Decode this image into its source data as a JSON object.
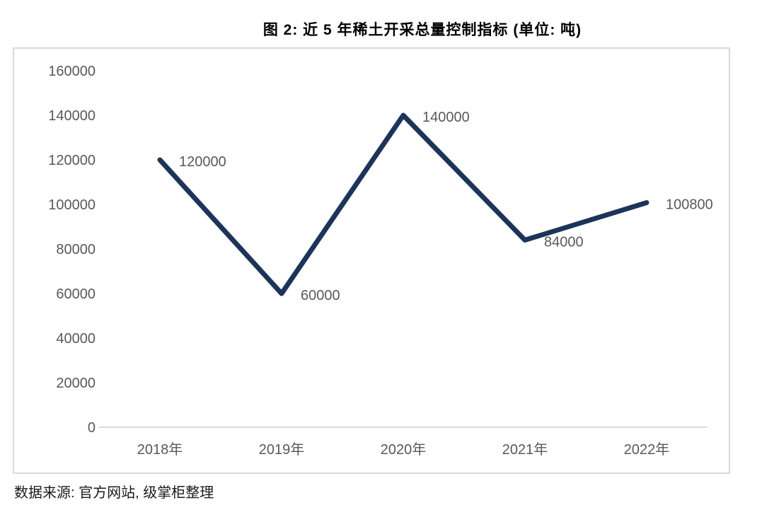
{
  "figure": {
    "title": "图 2:  近 5 年稀土开采总量控制指标  (单位:  吨)",
    "source_note": "数据来源:  官方网站,  级掌柜整理"
  },
  "chart_data": {
    "type": "line",
    "title": "图 2: 近 5 年稀土开采总量控制指标 (单位: 吨)",
    "categories": [
      "2018年",
      "2019年",
      "2020年",
      "2021年",
      "2022年"
    ],
    "values": [
      120000,
      60000,
      140000,
      84000,
      100800
    ],
    "data_labels": [
      "120000",
      "60000",
      "140000",
      "84000",
      "100800"
    ],
    "xlabel": "",
    "ylabel": "",
    "ylim": [
      0,
      160000
    ],
    "y_tick_step": 20000,
    "y_ticks": [
      160000,
      140000,
      120000,
      100000,
      80000,
      60000,
      40000,
      20000,
      0
    ],
    "grid": false,
    "legend": "none",
    "axis_lines": "x-axis-only",
    "colors": {
      "line": "#1c3459",
      "tick_label": "#595959",
      "data_label": "#595959",
      "axis_line": "#d9d9d9",
      "plot_border": "#d9d9d9",
      "title_text": "#000000",
      "source_text": "#1a1a1a",
      "background": "#ffffff"
    }
  }
}
